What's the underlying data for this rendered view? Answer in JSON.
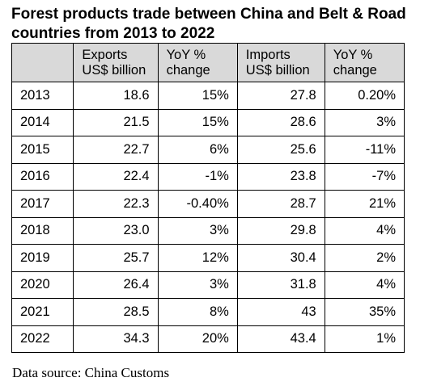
{
  "title_line1": "Forest products trade between China and Belt & Road",
  "title_line2": "countries from 2013 to 2022",
  "table": {
    "headers": [
      {
        "line1": "",
        "line2": ""
      },
      {
        "line1": "Exports",
        "line2": "US$ billion"
      },
      {
        "line1": "YoY %",
        "line2": "change"
      },
      {
        "line1": "Imports",
        "line2": "US$ billion"
      },
      {
        "line1": "YoY %",
        "line2": "change"
      }
    ],
    "rows": [
      [
        "2013",
        "18.6",
        "15%",
        "27.8",
        "0.20%"
      ],
      [
        "2014",
        "21.5",
        "15%",
        "28.6",
        "3%"
      ],
      [
        "2015",
        "22.7",
        "6%",
        "25.6",
        "-11%"
      ],
      [
        "2016",
        "22.4",
        "-1%",
        "23.8",
        "-7%"
      ],
      [
        "2017",
        "22.3",
        "-0.40%",
        "28.7",
        "21%"
      ],
      [
        "2018",
        "23.0",
        "3%",
        "29.8",
        "4%"
      ],
      [
        "2019",
        "25.7",
        "12%",
        "30.4",
        "2%"
      ],
      [
        "2020",
        "26.4",
        "3%",
        "31.8",
        "4%"
      ],
      [
        "2021",
        "28.5",
        "8%",
        "43",
        "35%"
      ],
      [
        "2022",
        "34.3",
        "20%",
        "43.4",
        "1%"
      ]
    ]
  },
  "source": "Data source: China Customs",
  "colors": {
    "header_background": "#d9d9d9",
    "border": "#000000",
    "text": "#000000"
  }
}
